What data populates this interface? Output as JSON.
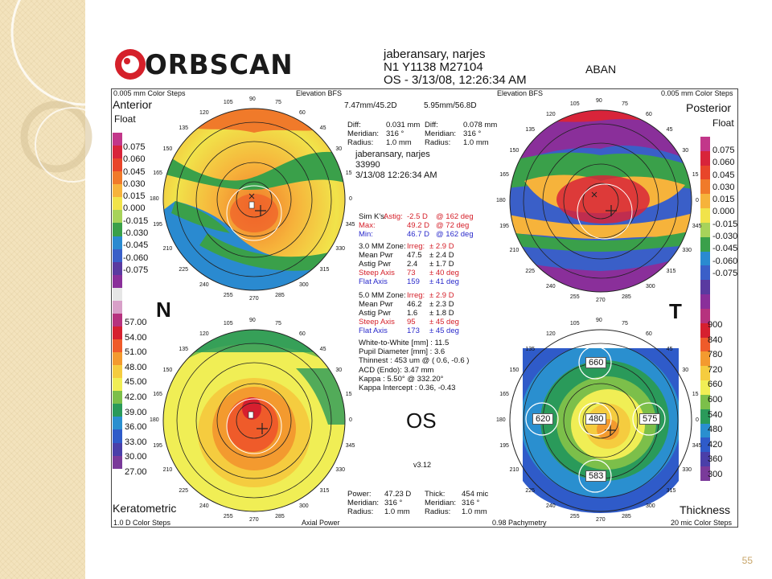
{
  "slide": {
    "page_number": "55"
  },
  "header": {
    "logo_text": "ORBSCAN",
    "patient_line1": "jaberansary, narjes",
    "patient_line2": "N1 Y1138 M27104",
    "patient_line3": "OS - 3/13/08, 12:26:34 AM",
    "aban": "ABAN"
  },
  "anterior": {
    "steps": "0.005 mm Color Steps",
    "elevation": "Elevation BFS",
    "title": "Anterior",
    "subtitle": "Float",
    "bfs": "7.47mm/45.2D",
    "scale_values": [
      "0.075",
      "0.060",
      "0.045",
      "0.030",
      "0.015",
      "0.000",
      "-0.015",
      "-0.030",
      "-0.045",
      "-0.060",
      "-0.075"
    ]
  },
  "posterior": {
    "steps": "0.005 mm Color Steps",
    "elevation": "Elevation BFS",
    "title": "Posterior",
    "subtitle": "Float",
    "bfs": "5.95mm/56.8D",
    "scale_values": [
      "0.075",
      "0.060",
      "0.045",
      "0.030",
      "0.015",
      "0.000",
      "-0.015",
      "-0.030",
      "-0.045",
      "-0.060",
      "-0.075"
    ]
  },
  "diff_left": {
    "l1": "Diff:",
    "v1": "0.031 mm",
    "l2": "Meridian:",
    "v2": "316 °",
    "l3": "Radius:",
    "v3": "1.0 mm"
  },
  "diff_right": {
    "l1": "Diff:",
    "v1": "0.078 mm",
    "l2": "Meridian:",
    "v2": "316 °",
    "l3": "Radius:",
    "v3": "1.0 mm"
  },
  "center_patient": {
    "name": "jaberansary, narjes",
    "id": "33990",
    "date": "3/13/08 12:26:34 AM"
  },
  "simk": {
    "label": "Sim K's:",
    "astig_label": "Astig:",
    "astig_val": "-2.5 D",
    "astig_deg": "@ 162 deg",
    "max_label": "Max:",
    "max_val": "49.2 D",
    "max_deg": "@ 72 deg",
    "min_label": "Min:",
    "min_val": "46.7 D",
    "min_deg": "@ 162 deg"
  },
  "zone3": {
    "label": "3.0 MM Zone:",
    "irreg_label": "Irreg:",
    "irreg_val": "± 2.9 D",
    "rows": [
      {
        "k": "Mean Pwr",
        "v": "47.5",
        "e": "± 2.4 D",
        "color": "#111111"
      },
      {
        "k": "Astig Pwr",
        "v": "2.4",
        "e": "± 1.7 D",
        "color": "#111111"
      },
      {
        "k": "Steep Axis",
        "v": "73",
        "e": "± 40 deg",
        "color": "#d5202a"
      },
      {
        "k": "Flat Axis",
        "v": "159",
        "e": "± 41 deg",
        "color": "#2a2acb"
      }
    ]
  },
  "zone5": {
    "label": "5.0 MM Zone:",
    "irreg_label": "Irreg:",
    "irreg_val": "± 2.9 D",
    "rows": [
      {
        "k": "Mean Pwr",
        "v": "46.2",
        "e": "± 2.3 D",
        "color": "#111111"
      },
      {
        "k": "Astig Pwr",
        "v": "1.6",
        "e": "± 1.8 D",
        "color": "#111111"
      },
      {
        "k": "Steep Axis",
        "v": "95",
        "e": "± 45 deg",
        "color": "#d5202a"
      },
      {
        "k": "Flat Axis",
        "v": "173",
        "e": "± 45 deg",
        "color": "#2a2acb"
      }
    ]
  },
  "measures": [
    "White-to-White [mm] : 11.5",
    "Pupil Diameter [mm] : 3.6",
    "Thinnest : 453 um @ ( 0.6, -0.6 )",
    "ACD (Endo): 3.47 mm",
    "Kappa : 5.50° @ 332.20°",
    "Kappa Intercept : 0.36, -0.43"
  ],
  "eye": {
    "n": "N",
    "t": "T",
    "os": "OS",
    "version": "v3.12"
  },
  "keratometric": {
    "title": "Keratometric",
    "steps": "1.0 D Color Steps",
    "footer_right": "Axial Power",
    "scale_values": [
      "57.00",
      "54.00",
      "51.00",
      "48.00",
      "45.00",
      "42.00",
      "39.00",
      "36.00",
      "33.00",
      "30.00",
      "27.00"
    ]
  },
  "thickness": {
    "title": "Thickness",
    "steps": "20 mic Color Steps",
    "footer_left": "0.98 Pachymetry",
    "scale_values": [
      "900",
      "840",
      "780",
      "720",
      "660",
      "600",
      "540",
      "480",
      "420",
      "360",
      "300"
    ],
    "sectors": {
      "top": "660",
      "left": "620",
      "center": "480",
      "right": "575",
      "bottom": "583"
    }
  },
  "power_footer": {
    "l1": "Power:",
    "v1": "47.23 D",
    "l2": "Meridian:",
    "v2": "316 °",
    "l3": "Radius:",
    "v3": "1.0 mm"
  },
  "thick_footer": {
    "l1": "Thick:",
    "v1": "454 mic",
    "l2": "Meridian:",
    "v2": "316 °",
    "l3": "Radius:",
    "v3": "1.0 mm"
  },
  "axis_ticks": [
    "90",
    "105",
    "75",
    "120",
    "60",
    "135",
    "45",
    "150",
    "30",
    "165",
    "15",
    "180",
    "0",
    "195",
    "345",
    "210",
    "330",
    "225",
    "315",
    "240",
    "300",
    "255",
    "285",
    "270"
  ],
  "colors": {
    "elev_scale": [
      "#c2378a",
      "#d8243a",
      "#e8452a",
      "#f07a2a",
      "#f6b33b",
      "#f1e34a",
      "#a7d35a",
      "#3aa04a",
      "#2a8ad0",
      "#3a5fc8",
      "#5a3aa0",
      "#8a2f9a"
    ],
    "pwr_scale": [
      "#e6e6e6",
      "#d8a0c8",
      "#b6327e",
      "#d61f2f",
      "#ef5b2a",
      "#f39a2f",
      "#f5cc3f",
      "#f0ee55",
      "#7cbf4a",
      "#2a9a5a",
      "#2a8fcf",
      "#2f5bc9",
      "#4a3fa9",
      "#7a3a9a"
    ]
  }
}
